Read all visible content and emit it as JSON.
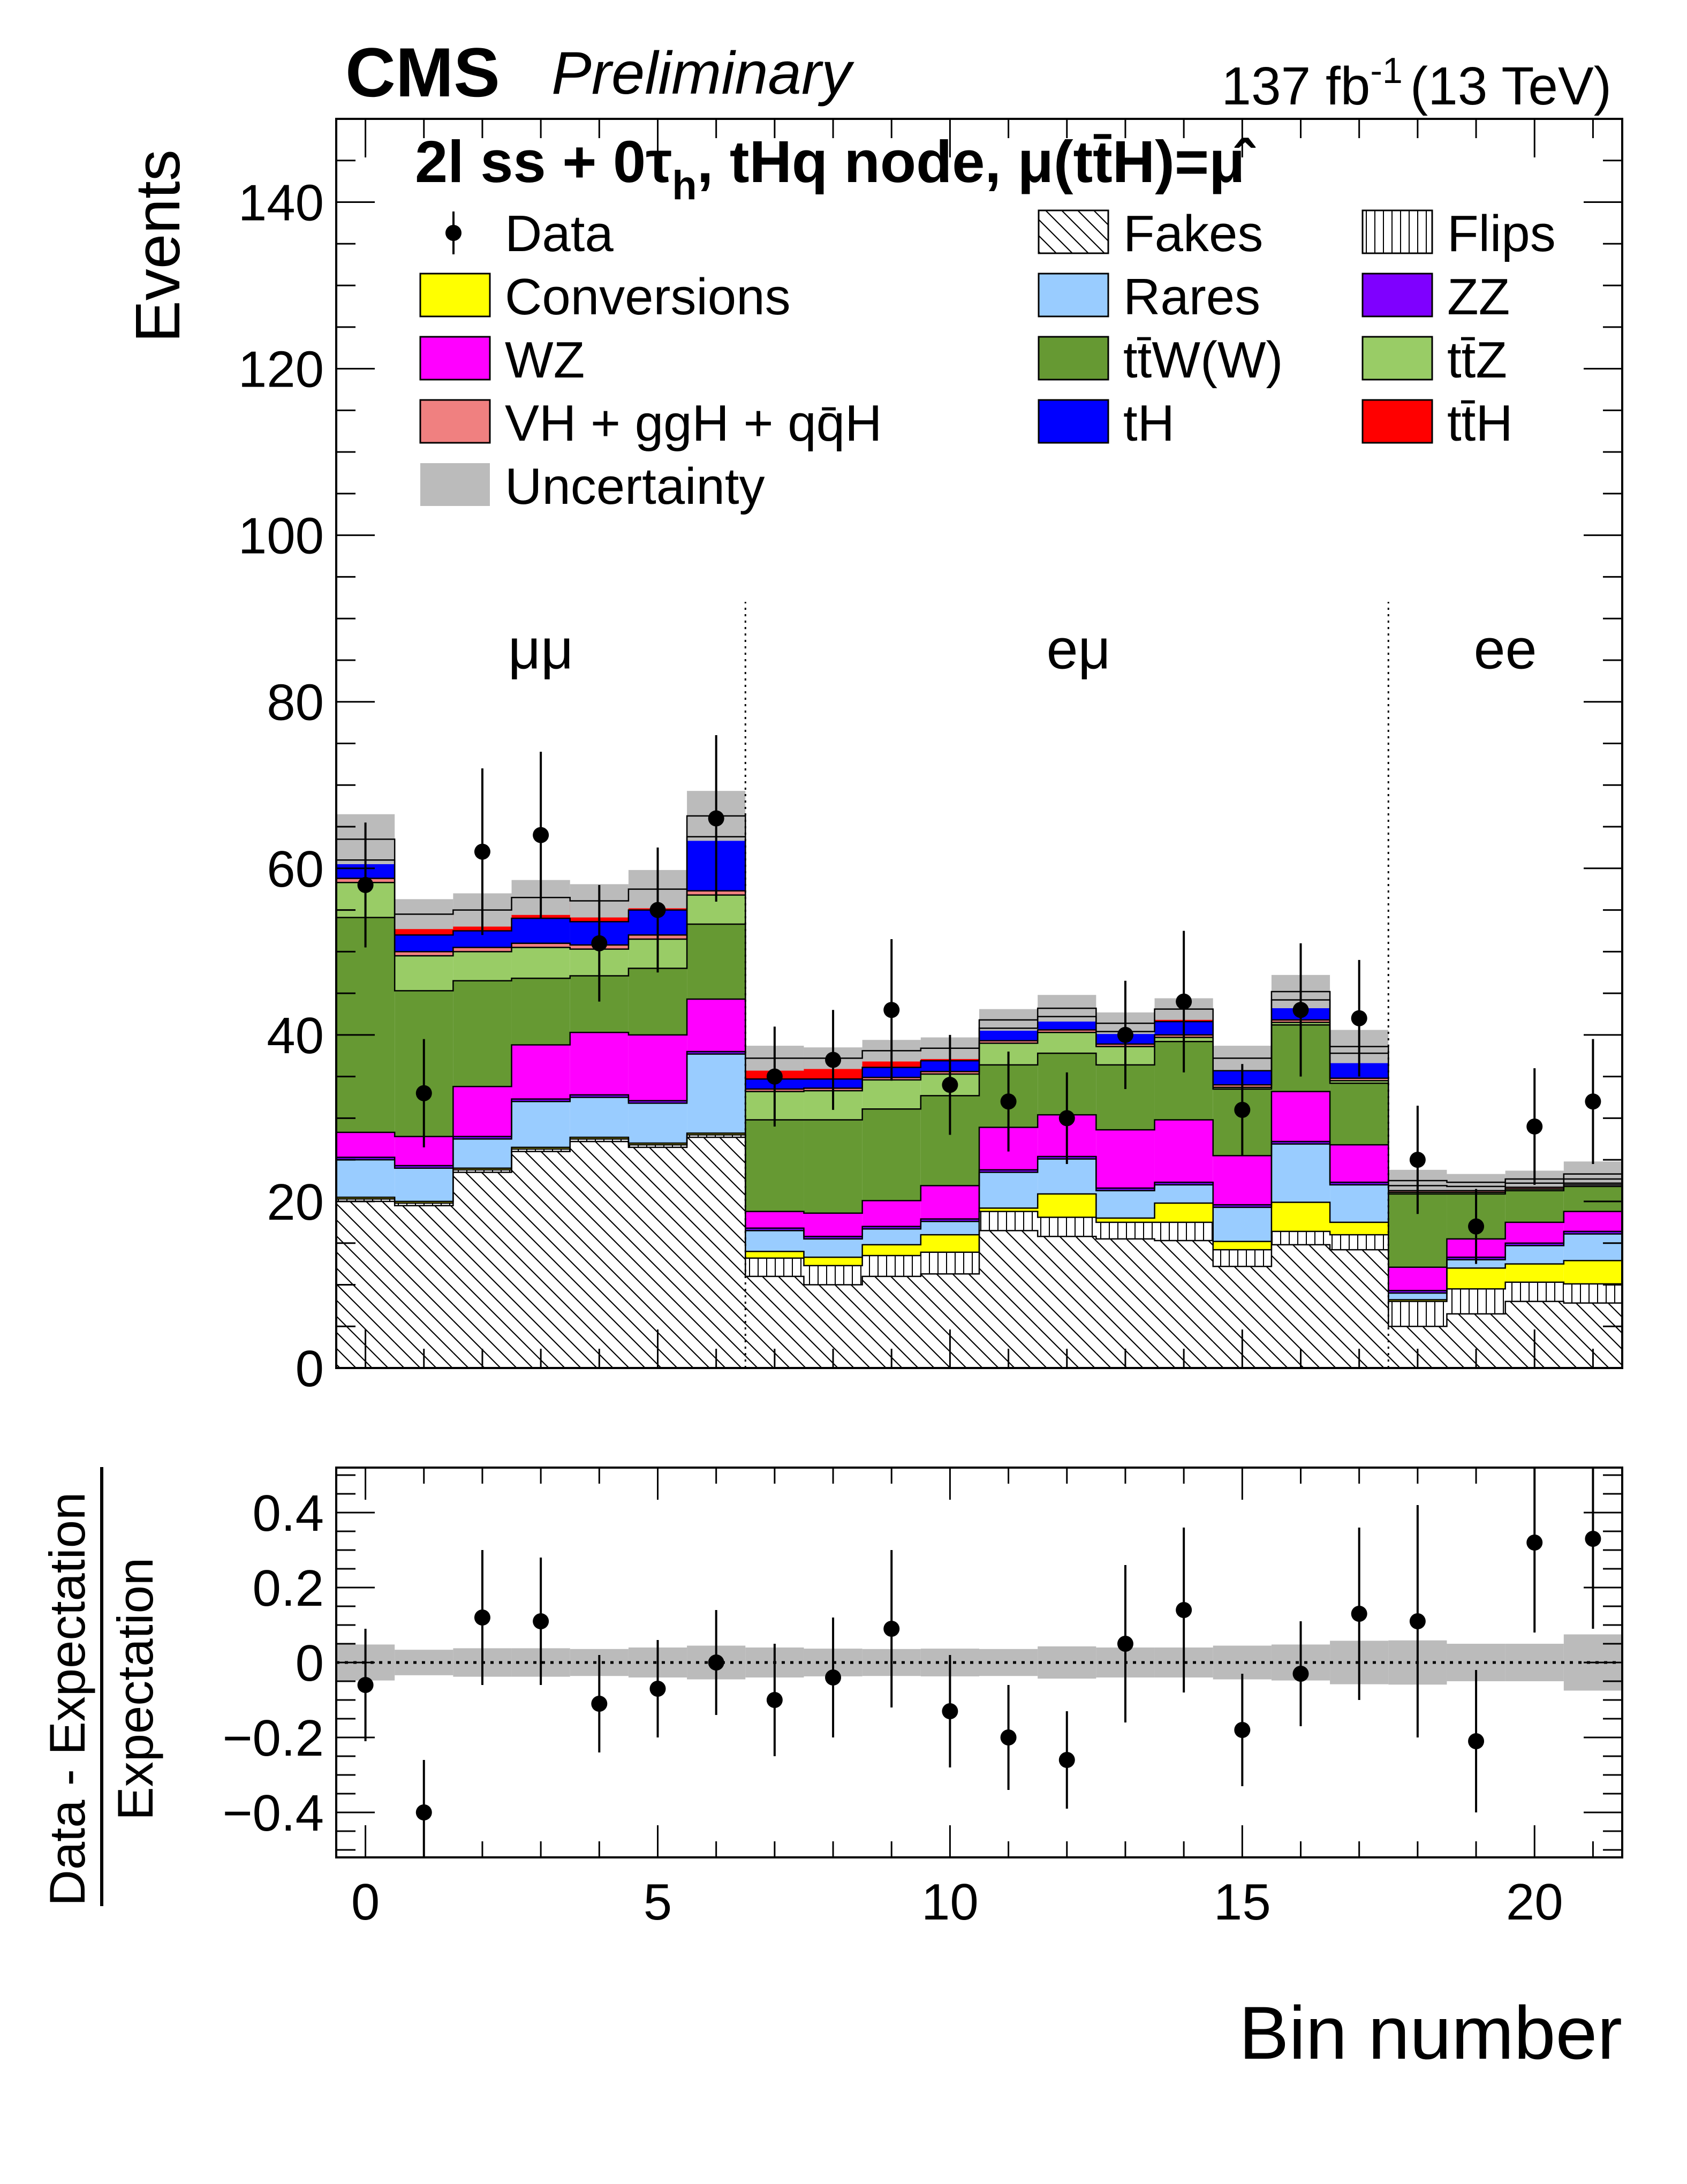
{
  "header": {
    "experiment": "CMS",
    "status": "Preliminary",
    "luminosity": "137 fb",
    "luminosity_sup": "-1",
    "energy": "(13 TeV)"
  },
  "category_label": {
    "part1": "2l ss + 0τ",
    "part1_sub": "h",
    "part2": ", tHq node, ",
    "part3": "μ(tt̄H)=μ̂"
  },
  "channels": [
    {
      "label": "μμ",
      "x": 3.0
    },
    {
      "label": "eμ",
      "x": 12.2
    },
    {
      "label": "ee",
      "x": 19.5
    }
  ],
  "legend": [
    {
      "key": "data",
      "label": "Data",
      "kind": "marker",
      "color": "#000000"
    },
    {
      "key": "fakes",
      "label": "Fakes",
      "kind": "hatch",
      "color": "#000000"
    },
    {
      "key": "flips",
      "label": "Flips",
      "kind": "vhatch",
      "color": "#000000"
    },
    {
      "key": "conversions",
      "label": "Conversions",
      "kind": "fill",
      "color": "#ffff00"
    },
    {
      "key": "rares",
      "label": "Rares",
      "kind": "fill",
      "color": "#99ccff"
    },
    {
      "key": "zz",
      "label": "ZZ",
      "kind": "fill",
      "color": "#7f00ff"
    },
    {
      "key": "wz",
      "label": "WZ",
      "kind": "fill",
      "color": "#ff00ff"
    },
    {
      "key": "ttw",
      "label": "tt̄W(W)",
      "kind": "fill",
      "color": "#669933"
    },
    {
      "key": "ttz",
      "label": "tt̄Z",
      "kind": "fill",
      "color": "#99cc66"
    },
    {
      "key": "vh",
      "label": "VH + ggH + qq̄H",
      "kind": "fill",
      "color": "#f08080"
    },
    {
      "key": "th",
      "label": "tH",
      "kind": "fill",
      "color": "#0000ff"
    },
    {
      "key": "tth",
      "label": "tt̄H",
      "kind": "fill",
      "color": "#ff0000"
    },
    {
      "key": "unc",
      "label": "Uncertainty",
      "kind": "fill",
      "color": "#bbbbbb"
    }
  ],
  "chart_data": [
    {
      "type": "stacked-histogram",
      "title": "2l ss + 0τh, tHq node",
      "xlabel": "Bin number",
      "ylabel": "Events",
      "xlim": [
        -0.5,
        21.5
      ],
      "ylim": [
        0,
        150
      ],
      "yticks": [
        0,
        20,
        40,
        60,
        80,
        100,
        120,
        140
      ],
      "xticks": [
        0,
        5,
        10,
        15,
        20
      ],
      "channel_boundaries": [
        6.5,
        17.5
      ],
      "bins": [
        0,
        1,
        2,
        3,
        4,
        5,
        6,
        7,
        8,
        9,
        10,
        11,
        12,
        13,
        14,
        15,
        16,
        17,
        18,
        19,
        20,
        21
      ],
      "stack_order": [
        "fakes",
        "flips",
        "conversions",
        "rares",
        "zz",
        "wz",
        "ttw",
        "ttz",
        "vh",
        "th",
        "tth"
      ],
      "series": [
        {
          "name": "Fakes",
          "key": "fakes",
          "values": [
            20,
            19.5,
            23.5,
            26,
            27.2,
            26.5,
            27.7,
            11,
            10,
            11,
            11.3,
            16.5,
            15.8,
            15.5,
            15.3,
            12.2,
            14.8,
            14.2,
            5,
            6.5,
            8,
            7.8
          ]
        },
        {
          "name": "Flips",
          "key": "flips",
          "values": [
            0.3,
            0.3,
            0.3,
            0.3,
            0.3,
            0.3,
            0.3,
            2.2,
            2.3,
            2.5,
            2.6,
            2.3,
            2.3,
            2.0,
            2.2,
            2.0,
            1.6,
            1.8,
            3.0,
            3.0,
            2.3,
            2.3
          ]
        },
        {
          "name": "Conversions",
          "key": "conversions",
          "values": [
            0.2,
            0.2,
            0.2,
            0.2,
            0.2,
            0.2,
            0.2,
            0.8,
            1.0,
            1.3,
            2.1,
            0.4,
            2.8,
            0.5,
            2.3,
            1.0,
            3.5,
            1.5,
            0.2,
            2.5,
            2.2,
            2.8
          ]
        },
        {
          "name": "Rares",
          "key": "rares",
          "values": [
            4.5,
            4.0,
            3.5,
            5.5,
            4.8,
            4.8,
            9.5,
            2.5,
            2.2,
            1.9,
            1.6,
            4.3,
            4.2,
            3.3,
            2.2,
            4.1,
            7.0,
            4.5,
            0.8,
            1.0,
            2.2,
            3.2
          ]
        },
        {
          "name": "ZZ",
          "key": "zz",
          "values": [
            0.3,
            0.3,
            0.3,
            0.3,
            0.3,
            0.3,
            0.3,
            0.3,
            0.3,
            0.3,
            0.3,
            0.3,
            0.3,
            0.3,
            0.3,
            0.3,
            0.3,
            0.3,
            0.3,
            0.3,
            0.3,
            0.3
          ]
        },
        {
          "name": "WZ",
          "key": "wz",
          "values": [
            3.0,
            3.5,
            6.0,
            6.5,
            7.5,
            7.9,
            6.3,
            2.0,
            2.8,
            3.1,
            4.0,
            5.1,
            5.0,
            7.0,
            7.5,
            5.9,
            6.0,
            4.5,
            2.8,
            2.2,
            2.5,
            2.4
          ]
        },
        {
          "name": "ttW(W)",
          "key": "ttw",
          "values": [
            25.8,
            17.5,
            12.7,
            8.0,
            6.8,
            8.0,
            9.0,
            11.0,
            11.2,
            11.0,
            10.8,
            7.5,
            7.4,
            7.8,
            9.4,
            8.0,
            8.0,
            7.4,
            8.8,
            5.4,
            3.8,
            3.0
          ]
        },
        {
          "name": "ttZ",
          "key": "ttz",
          "values": [
            4.2,
            4.2,
            3.5,
            3.7,
            3.2,
            3.5,
            3.5,
            3.4,
            3.5,
            3.5,
            2.6,
            2.6,
            2.5,
            2.2,
            0.5,
            0.2,
            0.3,
            0.3,
            0.2,
            0.2,
            0.2,
            0.2
          ]
        },
        {
          "name": "VH + ggH + qq̄H",
          "key": "vh",
          "values": [
            0.5,
            0.5,
            0.5,
            0.5,
            0.5,
            0.5,
            0.5,
            0.3,
            0.3,
            0.3,
            0.3,
            0.3,
            0.3,
            0.3,
            0.3,
            0.3,
            0.3,
            0.3,
            0.2,
            0.2,
            0.2,
            0.2
          ]
        },
        {
          "name": "tH",
          "key": "th",
          "values": [
            2.2,
            2.0,
            2.0,
            3.0,
            2.8,
            3.0,
            6.5,
            1.2,
            1.1,
            1.2,
            1.3,
            1.5,
            1.6,
            1.5,
            1.6,
            1.7,
            2.4,
            3.0,
            0.6,
            0.5,
            0.5,
            0.5
          ]
        },
        {
          "name": "ttH",
          "key": "tth",
          "values": [
            2.5,
            2.5,
            2.5,
            2.5,
            2.5,
            2.5,
            2.5,
            2.5,
            2.5,
            2.0,
            1.5,
            1.0,
            1.0,
            1.0,
            1.5,
            1.5,
            1.0,
            0.8,
            0.6,
            0.5,
            0.5,
            0.6
          ]
        }
      ],
      "uncertainty_band_half_width": [
        3.0,
        1.8,
        2.0,
        2.1,
        2.0,
        2.3,
        3.0,
        1.5,
        1.3,
        1.3,
        1.3,
        1.3,
        1.6,
        1.3,
        1.3,
        1.5,
        2.0,
        2.0,
        1.3,
        1.0,
        1.0,
        1.5
      ],
      "data": {
        "name": "Data",
        "values": [
          58,
          33,
          62,
          64,
          51,
          55,
          66,
          35,
          37,
          43,
          34,
          32,
          30,
          40,
          44,
          31,
          43,
          42,
          25,
          17,
          29,
          32
        ],
        "errors": [
          7.5,
          6.5,
          10,
          10,
          7,
          7.5,
          10,
          6,
          6,
          8.5,
          6,
          6,
          5.5,
          6.5,
          8.5,
          5.5,
          8,
          7,
          6.5,
          4.5,
          7,
          7.5
        ]
      }
    },
    {
      "type": "ratio",
      "ylabel_numerator": "Data - Expectation",
      "ylabel_denominator": "Expectation",
      "xlim": [
        -0.5,
        21.5
      ],
      "ylim": [
        -0.52,
        0.52
      ],
      "yticks": [
        -0.4,
        -0.2,
        0,
        0.2,
        0.4
      ],
      "yticklabels": [
        "−0.4",
        "−0.2",
        "0",
        "0.2",
        "0.4"
      ],
      "xticks": [
        0,
        5,
        10,
        15,
        20
      ],
      "points": {
        "x": [
          0,
          1,
          2,
          3,
          4,
          5,
          6,
          7,
          8,
          9,
          10,
          11,
          12,
          13,
          14,
          15,
          16,
          17,
          18,
          19,
          20,
          21
        ],
        "y": [
          -0.06,
          -0.4,
          0.12,
          0.11,
          -0.11,
          -0.07,
          0.0,
          -0.1,
          -0.04,
          0.09,
          -0.13,
          -0.2,
          -0.26,
          0.05,
          0.14,
          -0.18,
          -0.03,
          0.13,
          0.11,
          -0.21,
          0.32,
          0.33
        ],
        "err": [
          0.15,
          0.14,
          0.18,
          0.17,
          0.13,
          0.13,
          0.14,
          0.15,
          0.16,
          0.21,
          0.15,
          0.14,
          0.13,
          0.21,
          0.22,
          0.15,
          0.14,
          0.23,
          0.31,
          0.19,
          0.24,
          0.24
        ]
      },
      "band_half_width": [
        0.048,
        0.034,
        0.038,
        0.038,
        0.036,
        0.04,
        0.045,
        0.04,
        0.037,
        0.036,
        0.037,
        0.036,
        0.043,
        0.04,
        0.04,
        0.045,
        0.048,
        0.058,
        0.059,
        0.05,
        0.05,
        0.075
      ]
    }
  ]
}
